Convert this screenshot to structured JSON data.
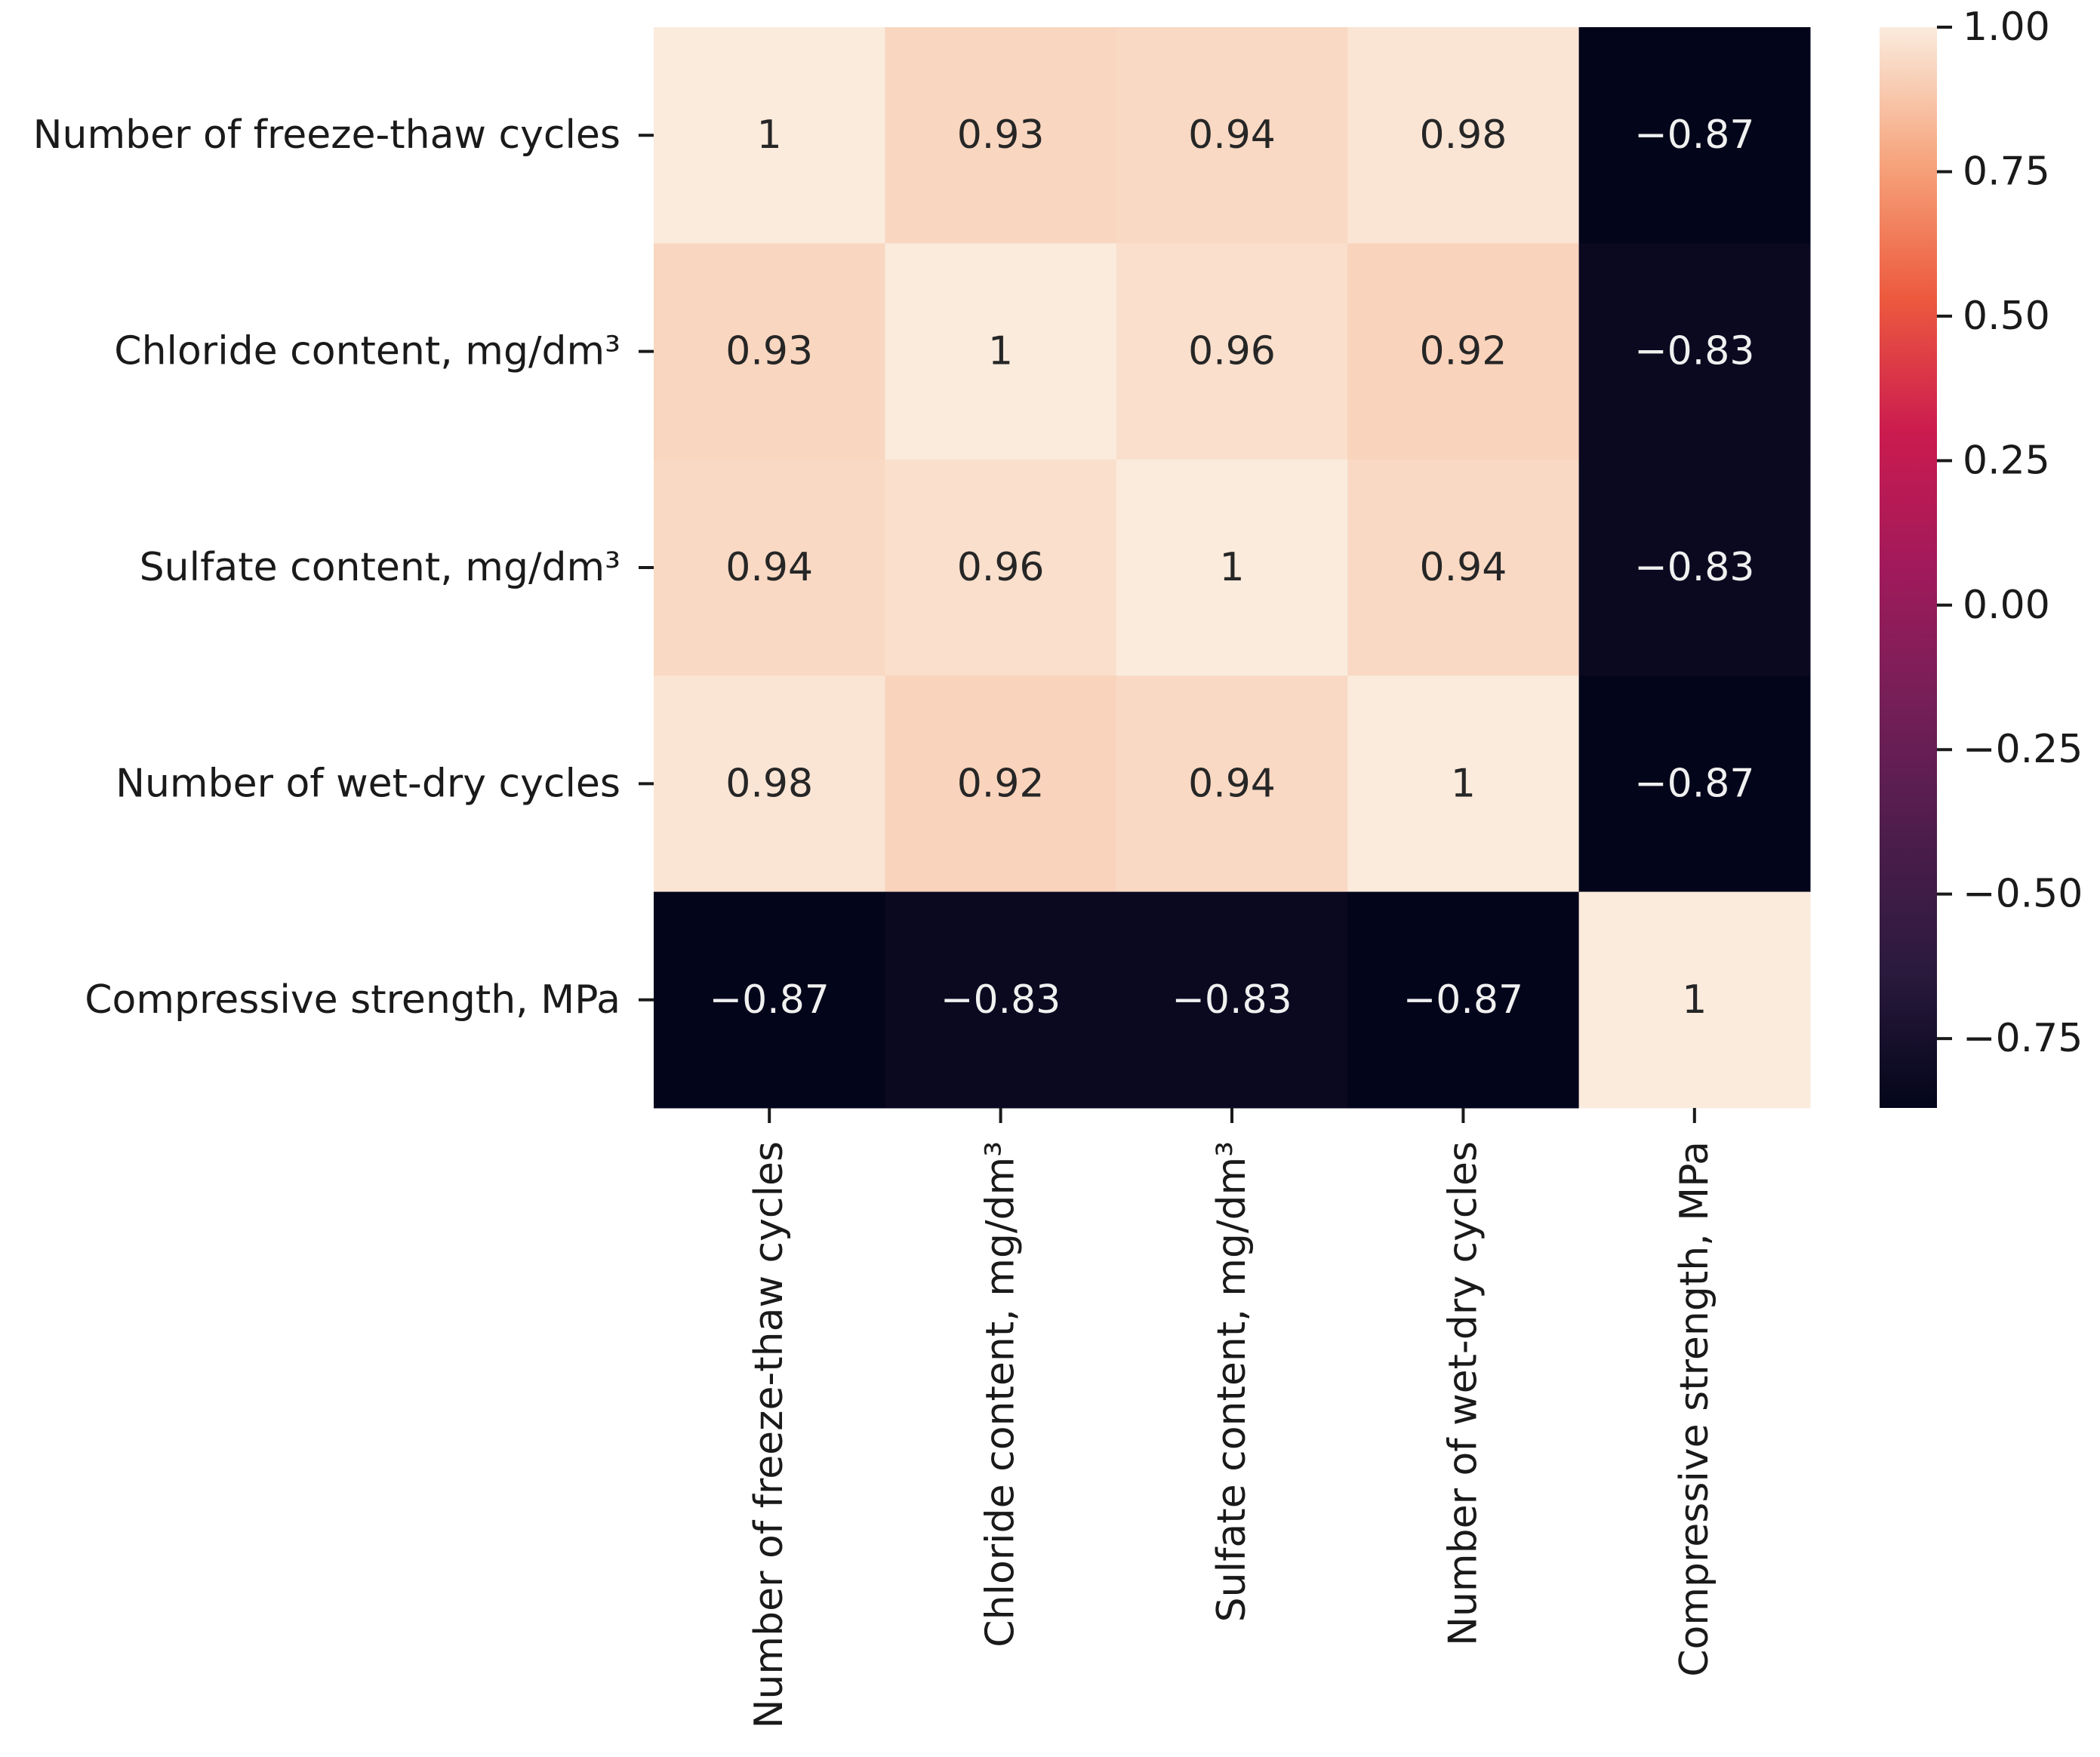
{
  "chart_data": {
    "type": "heatmap",
    "title": "",
    "xlabel": "",
    "ylabel": "",
    "row_labels": [
      "Number of freeze-thaw cycles",
      "Chloride content, mg/dm³",
      "Sulfate content, mg/dm³",
      "Number of wet-dry cycles",
      "Compressive strength, MPa"
    ],
    "col_labels": [
      "Number of freeze-thaw cycles",
      "Chloride content, mg/dm³",
      "Sulfate content, mg/dm³",
      "Number of wet-dry cycles",
      "Compressive strength, MPa"
    ],
    "values": [
      [
        1,
        0.93,
        0.94,
        0.98,
        -0.87
      ],
      [
        0.93,
        1,
        0.96,
        0.92,
        -0.83
      ],
      [
        0.94,
        0.96,
        1,
        0.94,
        -0.83
      ],
      [
        0.98,
        0.92,
        0.94,
        1,
        -0.87
      ],
      [
        -0.87,
        -0.83,
        -0.83,
        -0.87,
        1
      ]
    ],
    "annotations": [
      [
        "1",
        "0.93",
        "0.94",
        "0.98",
        "−0.87"
      ],
      [
        "0.93",
        "1",
        "0.96",
        "0.92",
        "−0.83"
      ],
      [
        "0.94",
        "0.96",
        "1",
        "0.94",
        "−0.83"
      ],
      [
        "0.98",
        "0.92",
        "0.94",
        "1",
        "−0.87"
      ],
      [
        "−0.87",
        "−0.83",
        "−0.83",
        "−0.87",
        "1"
      ]
    ],
    "colorbar": {
      "colormap": "rocket",
      "vmin": -0.87,
      "vmax": 1.0,
      "ticks": [
        1.0,
        0.75,
        0.5,
        0.25,
        0.0,
        -0.25,
        -0.5,
        -0.75
      ],
      "tick_labels": [
        "1.00",
        "0.75",
        "0.50",
        "0.25",
        "0.00",
        "−0.25",
        "−0.50",
        "−0.75"
      ],
      "placement": "right"
    },
    "grid": false
  }
}
